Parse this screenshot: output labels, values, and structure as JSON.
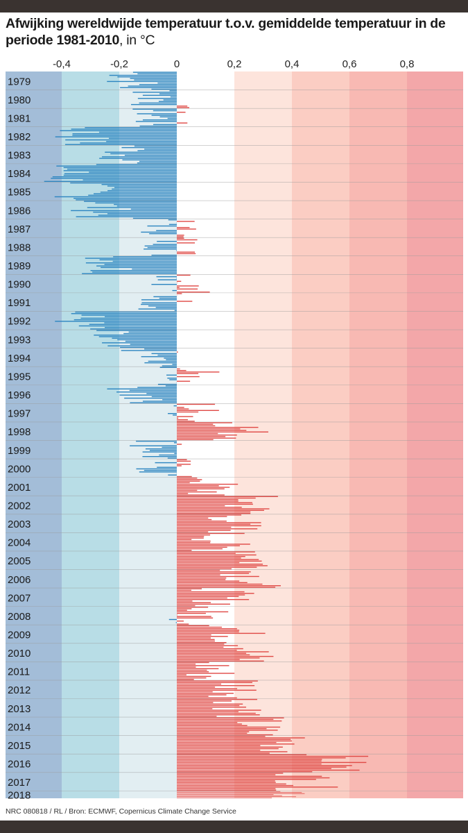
{
  "chart_data": {
    "type": "bar",
    "orientation": "horizontal",
    "title_bold": "Afwijking wereldwijde temperatuur t.o.v. gemiddelde temperatuur in de periode 1981-2010",
    "title_unit": ", in °C",
    "x_tick_labels": [
      "-0,4",
      "-0,2",
      "0",
      "0,2",
      "0,4",
      "0,6",
      "0,8"
    ],
    "x_ticks": [
      -0.4,
      -0.2,
      0,
      0.2,
      0.4,
      0.6,
      0.8
    ],
    "xlim": [
      -0.6,
      1.0
    ],
    "year_labels": [
      "1979",
      "1980",
      "1981",
      "1982",
      "1983",
      "1984",
      "1985",
      "1986",
      "1987",
      "1988",
      "1989",
      "1990",
      "1991",
      "1992",
      "1993",
      "1994",
      "1995",
      "1996",
      "1997",
      "1998",
      "1999",
      "2000",
      "2001",
      "2002",
      "2003",
      "2004",
      "2005",
      "2006",
      "2007",
      "2008",
      "2009",
      "2010",
      "2011",
      "2012",
      "2013",
      "2014",
      "2015",
      "2016",
      "2017",
      "2018"
    ],
    "series_note": "Approximate anomaly per year (°C) as read from the chart; values are expanded into the thin bars of the figure",
    "annual_values": {
      "1979": -0.15,
      "1980": -0.06,
      "1981": -0.07,
      "1982": -0.33,
      "1983": -0.17,
      "1984": -0.38,
      "1985": -0.32,
      "1986": -0.26,
      "1987": -0.02,
      "1988": -0.01,
      "1989": -0.22,
      "1990": 0.02,
      "1991": -0.03,
      "1992": -0.34,
      "1993": -0.27,
      "1994": -0.1,
      "1995": 0.04,
      "1996": -0.14,
      "1997": 0.06,
      "1998": 0.23,
      "1999": -0.06,
      "2000": -0.05,
      "2001": 0.12,
      "2002": 0.25,
      "2003": 0.2,
      "2004": 0.15,
      "2005": 0.28,
      "2006": 0.26,
      "2007": 0.16,
      "2008": 0.08,
      "2009": 0.21,
      "2010": 0.25,
      "2011": 0.12,
      "2012": 0.22,
      "2013": 0.23,
      "2014": 0.27,
      "2015": 0.38,
      "2016": 0.56,
      "2017": 0.45,
      "2018": 0.42
    },
    "colors": {
      "negative": "#2e86c1",
      "positive": "#e04b47",
      "bands": [
        "#a3bdd8",
        "#b8dde6",
        "#e2eef2",
        "#ffffff",
        "#fde4dc",
        "#fbcdc3",
        "#f8b9b3",
        "#f3a7a9"
      ]
    }
  },
  "footer": {
    "credit": "NRC 080818 / RL / Bron: ECMWF, Copernicus Climate Change Service"
  }
}
